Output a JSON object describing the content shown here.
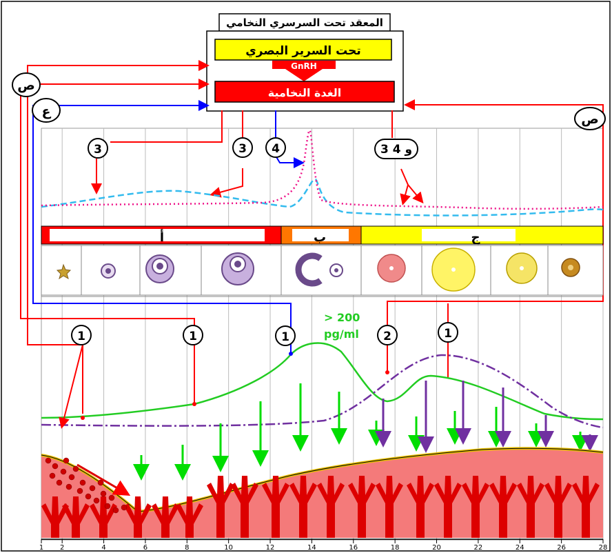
{
  "boxes": {
    "complex_title": "المعقد تحت السرسري النخامي",
    "hypothalamus": "تحت السرير البصري",
    "hormone": "GnRH",
    "pituitary": "الغدة النخامية"
  },
  "feedback_labels": {
    "left_top": "ص",
    "left_bottom": "ع",
    "right": "ص"
  },
  "markers": {
    "m3_left": "3",
    "m3_mid": "3",
    "m4_mid": "4",
    "m34": "3 و 4",
    "m1_a": "1",
    "m1_b": "1",
    "m1_c": "1",
    "m2": "2",
    "m1_d": "1"
  },
  "phases": {
    "a": "أ",
    "b": "ب",
    "c": "ج"
  },
  "threshold_line1": "> 200",
  "threshold_line2": "pg/ml",
  "x_axis_ticks": [
    "1",
    "2",
    "4",
    "6",
    "8",
    "10",
    "12",
    "14",
    "16",
    "18",
    "20",
    "22",
    "24",
    "26",
    "28"
  ],
  "colors": {
    "red": "#ff0000",
    "blue": "#0000ff",
    "green": "#00cc00",
    "yellow": "#ffff00",
    "purple": "#7030a0",
    "cyan": "#33bbee",
    "magenta": "#ee1188",
    "tissue": "#f47a7a"
  }
}
